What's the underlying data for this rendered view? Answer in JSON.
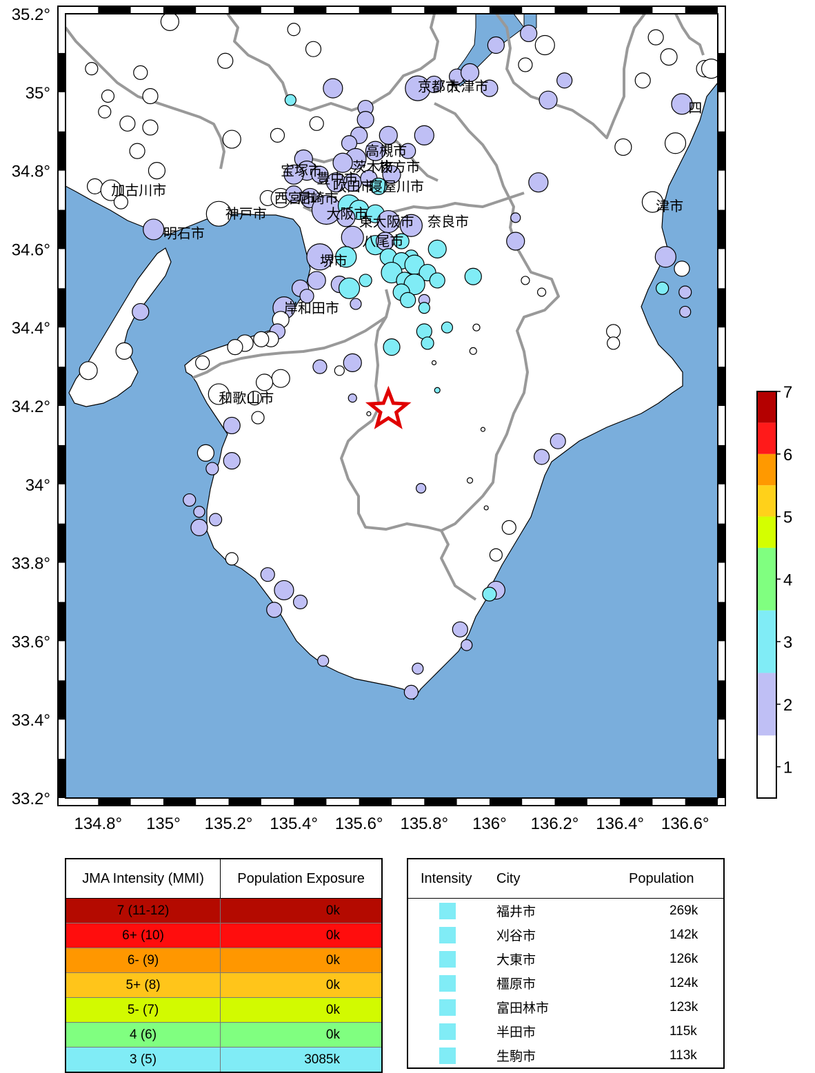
{
  "map": {
    "lon_range": [
      134.7,
      136.7
    ],
    "lat_range": [
      33.2,
      35.2
    ],
    "lon_ticks": [
      "134.8°",
      "135°",
      "135.2°",
      "135.4°",
      "135.6°",
      "135.8°",
      "136°",
      "136.2°",
      "136.4°",
      "136.6°"
    ],
    "lat_ticks": [
      "35.2°",
      "35°",
      "34.8°",
      "34.6°",
      "34.4°",
      "34.2°",
      "34°",
      "33.8°",
      "33.6°",
      "33.4°",
      "33.2°"
    ],
    "epicenter": {
      "lon": 135.69,
      "lat": 34.19
    },
    "colors": {
      "sea": "#7aaedc",
      "land": "#ffffff",
      "border": "#999999",
      "epicenter": "#e00000"
    },
    "city_labels": [
      {
        "name": "京都市",
        "lon": 135.78,
        "lat": 35.015
      },
      {
        "name": "大津市",
        "lon": 135.87,
        "lat": 35.015
      },
      {
        "name": "高槻市",
        "lon": 135.62,
        "lat": 34.85
      },
      {
        "name": "枚方市",
        "lon": 135.66,
        "lat": 34.81
      },
      {
        "name": "茨木市",
        "lon": 135.58,
        "lat": 34.81
      },
      {
        "name": "宝塚市",
        "lon": 135.36,
        "lat": 34.8
      },
      {
        "name": "豊中市",
        "lon": 135.47,
        "lat": 34.78
      },
      {
        "name": "吹田市",
        "lon": 135.52,
        "lat": 34.76
      },
      {
        "name": "寝屋川市",
        "lon": 135.63,
        "lat": 34.76
      },
      {
        "name": "加古川市",
        "lon": 134.84,
        "lat": 34.75
      },
      {
        "name": "西宮市",
        "lon": 135.34,
        "lat": 34.73
      },
      {
        "name": "尼崎市",
        "lon": 135.41,
        "lat": 34.73
      },
      {
        "name": "神戸市",
        "lon": 135.19,
        "lat": 34.69
      },
      {
        "name": "大阪市",
        "lon": 135.5,
        "lat": 34.69
      },
      {
        "name": "東大阪市",
        "lon": 135.6,
        "lat": 34.67
      },
      {
        "name": "奈良市",
        "lon": 135.81,
        "lat": 34.67
      },
      {
        "name": "津市",
        "lon": 136.51,
        "lat": 34.71
      },
      {
        "name": "明石市",
        "lon": 135.0,
        "lat": 34.64
      },
      {
        "name": "八尾市",
        "lon": 135.61,
        "lat": 34.62
      },
      {
        "name": "堺市",
        "lon": 135.48,
        "lat": 34.57
      },
      {
        "name": "岸和田市",
        "lon": 135.37,
        "lat": 34.45
      },
      {
        "name": "和歌山市",
        "lon": 135.17,
        "lat": 34.22
      },
      {
        "name": "四",
        "lon": 136.61,
        "lat": 34.96
      }
    ]
  },
  "colorbar": {
    "ticks": [
      "1",
      "2",
      "3",
      "4",
      "5",
      "6",
      "7"
    ],
    "colors": [
      "#ffffff",
      "#bfbff5",
      "#80ecf6",
      "#80ff80",
      "#d4ff00",
      "#ffd11a",
      "#ff9900",
      "#ff1a1a",
      "#b40000"
    ]
  },
  "exposure_table": {
    "headers": [
      "JMA Intensity (MMI)",
      "Population Exposure"
    ],
    "rows": [
      {
        "intensity": "7 (11-12)",
        "population": "0k",
        "color": "#b40a00"
      },
      {
        "intensity": "6+ (10)",
        "population": "0k",
        "color": "#ff0d0d"
      },
      {
        "intensity": "6- (9)",
        "population": "0k",
        "color": "#ff9700"
      },
      {
        "intensity": "5+ (8)",
        "population": "0k",
        "color": "#ffc51a"
      },
      {
        "intensity": "5- (7)",
        "population": "0k",
        "color": "#d2fa00"
      },
      {
        "intensity": "4 (6)",
        "population": "0k",
        "color": "#80ff80"
      },
      {
        "intensity": "3 (5)",
        "population": "3085k",
        "color": "#80ecf6"
      }
    ]
  },
  "city_table": {
    "headers": [
      "Intensity",
      "City",
      "Population"
    ],
    "rows": [
      {
        "city": "福井市",
        "population": "269k"
      },
      {
        "city": "刈谷市",
        "population": "142k"
      },
      {
        "city": "大東市",
        "population": "126k"
      },
      {
        "city": "橿原市",
        "population": "124k"
      },
      {
        "city": "富田林市",
        "population": "123k"
      },
      {
        "city": "半田市",
        "population": "115k"
      },
      {
        "city": "生駒市",
        "population": "113k"
      }
    ]
  }
}
